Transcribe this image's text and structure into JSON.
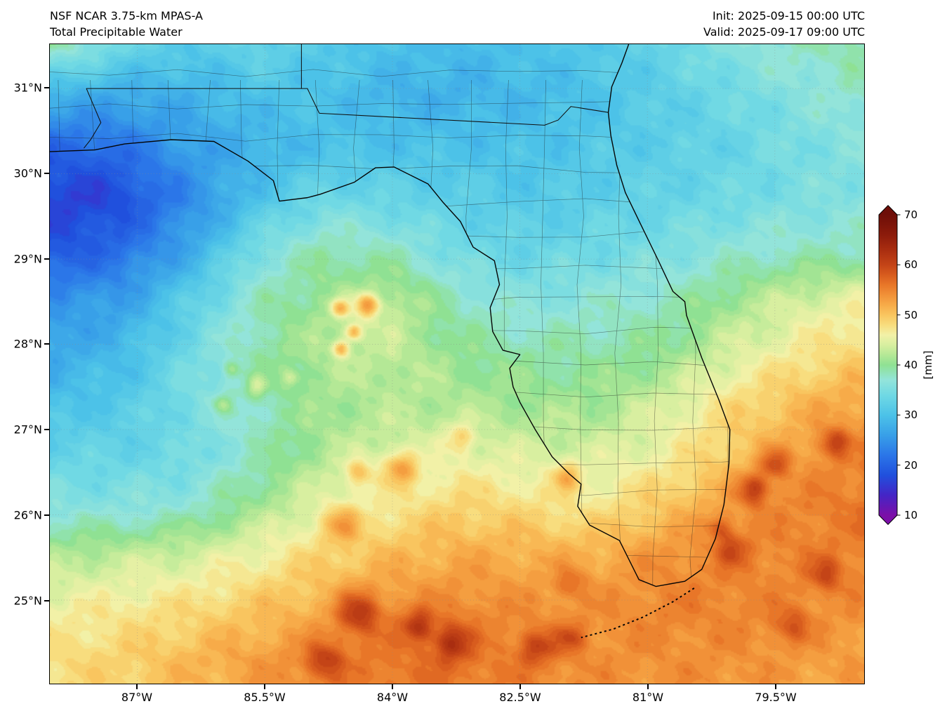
{
  "header": {
    "model": "NSF NCAR 3.75-km MPAS-A",
    "variable": "Total Precipitable Water",
    "init": "Init: 2025-09-15 00:00 UTC",
    "valid": "Valid: 2025-09-17 09:00 UTC"
  },
  "axes": {
    "y_ticks": [
      "31°N",
      "30°N",
      "29°N",
      "28°N",
      "27°N",
      "26°N",
      "25°N"
    ],
    "x_ticks": [
      "87°W",
      "85.5°W",
      "84°W",
      "82.5°W",
      "81°W",
      "79.5°W"
    ]
  },
  "colorbar": {
    "label": "[mm]",
    "ticks": [
      70,
      60,
      50,
      40,
      30,
      20,
      10
    ],
    "min": 10,
    "max": 70
  },
  "chart_data": {
    "type": "heatmap",
    "title": "Total Precipitable Water",
    "units": "mm",
    "value_range": [
      10,
      70
    ],
    "lon_range": [
      -88.03,
      -78.45
    ],
    "lat_range": [
      24.02,
      31.52
    ],
    "grid_lons": [
      -88.0,
      -87.2,
      -86.4,
      -85.6,
      -84.8,
      -84.0,
      -83.2,
      -82.4,
      -81.6,
      -80.8,
      -80.0,
      -79.2,
      -78.4
    ],
    "grid_lats": [
      31.5,
      30.9,
      30.3,
      29.7,
      29.1,
      28.5,
      27.9,
      27.3,
      26.7,
      26.1,
      25.5,
      24.9,
      24.3
    ],
    "values": [
      [
        39,
        34,
        31,
        33,
        31,
        30,
        29,
        30,
        31,
        33,
        36,
        38,
        39
      ],
      [
        28,
        27,
        28,
        30,
        30,
        28,
        28,
        29,
        30,
        32,
        34,
        36,
        38
      ],
      [
        21,
        23,
        26,
        28,
        30,
        30,
        30,
        30,
        31,
        32,
        33,
        35,
        36
      ],
      [
        18,
        20,
        24,
        30,
        34,
        33,
        32,
        31,
        32,
        33,
        34,
        35,
        36
      ],
      [
        19,
        22,
        27,
        35,
        39,
        38,
        34,
        33,
        34,
        35,
        37,
        38,
        38
      ],
      [
        25,
        26,
        32,
        38,
        41,
        43,
        38,
        36,
        37,
        38,
        41,
        44,
        46
      ],
      [
        27,
        29,
        34,
        39,
        42,
        43,
        40,
        39,
        39,
        40,
        44,
        47,
        49
      ],
      [
        30,
        31,
        35,
        38,
        41,
        42,
        42,
        41,
        41,
        44,
        48,
        51,
        53
      ],
      [
        33,
        33,
        34,
        38,
        42,
        44,
        45,
        44,
        44,
        46,
        50,
        53,
        55
      ],
      [
        36,
        36,
        37,
        41,
        45,
        47,
        49,
        48,
        47,
        50,
        53,
        55,
        56
      ],
      [
        42,
        43,
        44,
        46,
        49,
        51,
        52,
        52,
        52,
        54,
        55,
        55,
        55
      ],
      [
        46,
        47,
        48,
        50,
        52,
        54,
        55,
        54,
        54,
        55,
        55,
        54,
        54
      ],
      [
        48,
        49,
        51,
        53,
        55,
        56,
        56,
        55,
        54,
        54,
        54,
        53,
        53
      ]
    ],
    "spots": [
      {
        "lat": 29.8,
        "lon": -87.4,
        "amp": -2.5,
        "sigma": 0.5
      },
      {
        "lat": 28.45,
        "lon": -84.3,
        "amp": 11,
        "sigma": 0.1
      },
      {
        "lat": 28.42,
        "lon": -84.62,
        "amp": 9,
        "sigma": 0.08
      },
      {
        "lat": 28.15,
        "lon": -84.45,
        "amp": 10,
        "sigma": 0.07
      },
      {
        "lat": 27.95,
        "lon": -84.6,
        "amp": 9,
        "sigma": 0.07
      },
      {
        "lat": 27.7,
        "lon": -85.9,
        "amp": 4,
        "sigma": 0.07
      },
      {
        "lat": 27.6,
        "lon": -85.2,
        "amp": 4,
        "sigma": 0.07
      },
      {
        "lat": 27.5,
        "lon": -85.6,
        "amp": 5,
        "sigma": 0.09
      },
      {
        "lat": 27.3,
        "lon": -86.0,
        "amp": 4,
        "sigma": 0.08
      },
      {
        "lat": 26.55,
        "lon": -83.9,
        "amp": 8,
        "sigma": 0.14
      },
      {
        "lat": 26.5,
        "lon": -84.4,
        "amp": 6,
        "sigma": 0.12
      },
      {
        "lat": 26.9,
        "lon": -83.2,
        "amp": 5,
        "sigma": 0.12
      },
      {
        "lat": 26.45,
        "lon": -81.95,
        "amp": 6,
        "sigma": 0.12
      },
      {
        "lat": 26.3,
        "lon": -79.75,
        "amp": 8,
        "sigma": 0.13
      },
      {
        "lat": 26.6,
        "lon": -79.5,
        "amp": 7,
        "sigma": 0.12
      },
      {
        "lat": 26.85,
        "lon": -78.8,
        "amp": 7,
        "sigma": 0.12
      },
      {
        "lat": 25.9,
        "lon": -84.6,
        "amp": 6,
        "sigma": 0.15
      },
      {
        "lat": 25.85,
        "lon": -80.15,
        "amp": 5,
        "sigma": 0.1
      },
      {
        "lat": 25.2,
        "lon": -81.9,
        "amp": 4,
        "sigma": 0.12
      },
      {
        "lat": 24.85,
        "lon": -84.4,
        "amp": 8,
        "sigma": 0.18
      },
      {
        "lat": 24.7,
        "lon": -83.7,
        "amp": 7,
        "sigma": 0.13
      },
      {
        "lat": 24.55,
        "lon": -81.9,
        "amp": 5,
        "sigma": 0.12
      },
      {
        "lat": 24.5,
        "lon": -83.3,
        "amp": 7,
        "sigma": 0.15
      },
      {
        "lat": 24.45,
        "lon": -82.3,
        "amp": 6,
        "sigma": 0.14
      },
      {
        "lat": 24.3,
        "lon": -84.8,
        "amp": 6,
        "sigma": 0.15
      },
      {
        "lat": 24.7,
        "lon": -79.3,
        "amp": 5,
        "sigma": 0.15
      },
      {
        "lat": 25.3,
        "lon": -78.9,
        "amp": 5,
        "sigma": 0.14
      },
      {
        "lat": 25.6,
        "lon": -80.0,
        "amp": 5,
        "sigma": 0.13
      }
    ],
    "colormap": {
      "stops": [
        [
          10,
          "#7b0fa8"
        ],
        [
          14,
          "#4425c6"
        ],
        [
          18,
          "#2050dd"
        ],
        [
          22,
          "#2b76e8"
        ],
        [
          26,
          "#38a0e8"
        ],
        [
          30,
          "#4cc2e8"
        ],
        [
          34,
          "#70d9e4"
        ],
        [
          37,
          "#93e4da"
        ],
        [
          40,
          "#8fe193"
        ],
        [
          42,
          "#b4e896"
        ],
        [
          44,
          "#d8efa0"
        ],
        [
          46,
          "#f2f1a7"
        ],
        [
          48,
          "#f8dd7e"
        ],
        [
          50,
          "#f9c55f"
        ],
        [
          52,
          "#f7ab49"
        ],
        [
          54,
          "#f19138"
        ],
        [
          56,
          "#e87628"
        ],
        [
          58,
          "#d85c1e"
        ],
        [
          60,
          "#c44417"
        ],
        [
          63,
          "#a92d10"
        ],
        [
          66,
          "#8c1b0b"
        ],
        [
          70,
          "#6e0e08"
        ]
      ]
    },
    "gridlines": {
      "lats": [
        25,
        26,
        27,
        28,
        29,
        30,
        31
      ],
      "lons": [
        -87,
        -85.5,
        -84,
        -82.5,
        -81,
        -79.5
      ]
    },
    "counties": {
      "lon_start": -87.95,
      "lon_step": 0.44,
      "lon_count": 22,
      "lat_start": 24.35,
      "lat_step": 0.38,
      "lat_count": 20,
      "jitter": 0.1
    },
    "geo": {
      "coast": [
        [
          -88.03,
          30.26
        ],
        [
          -87.5,
          30.28
        ],
        [
          -87.15,
          30.35
        ],
        [
          -86.6,
          30.4
        ],
        [
          -86.1,
          30.38
        ],
        [
          -85.7,
          30.15
        ],
        [
          -85.4,
          29.92
        ],
        [
          -85.33,
          29.68
        ],
        [
          -85.0,
          29.72
        ],
        [
          -84.85,
          29.76
        ],
        [
          -84.45,
          29.9
        ],
        [
          -84.2,
          30.07
        ],
        [
          -83.98,
          30.08
        ],
        [
          -83.58,
          29.88
        ],
        [
          -83.4,
          29.66
        ],
        [
          -83.2,
          29.44
        ],
        [
          -83.05,
          29.14
        ],
        [
          -82.8,
          28.98
        ],
        [
          -82.74,
          28.7
        ],
        [
          -82.85,
          28.43
        ],
        [
          -82.82,
          28.15
        ],
        [
          -82.7,
          27.93
        ],
        [
          -82.5,
          27.88
        ],
        [
          -82.62,
          27.72
        ],
        [
          -82.58,
          27.5
        ],
        [
          -82.5,
          27.32
        ],
        [
          -82.32,
          27.0
        ],
        [
          -82.12,
          26.68
        ],
        [
          -81.92,
          26.48
        ],
        [
          -81.78,
          26.36
        ],
        [
          -81.82,
          26.1
        ],
        [
          -81.68,
          25.88
        ],
        [
          -81.33,
          25.7
        ],
        [
          -81.1,
          25.24
        ],
        [
          -80.9,
          25.16
        ],
        [
          -80.56,
          25.22
        ],
        [
          -80.36,
          25.36
        ],
        [
          -80.2,
          25.72
        ],
        [
          -80.1,
          26.12
        ],
        [
          -80.04,
          26.6
        ],
        [
          -80.03,
          27.0
        ],
        [
          -80.16,
          27.35
        ],
        [
          -80.36,
          27.84
        ],
        [
          -80.54,
          28.34
        ],
        [
          -80.56,
          28.5
        ],
        [
          -80.7,
          28.62
        ],
        [
          -80.88,
          29.0
        ],
        [
          -81.1,
          29.45
        ],
        [
          -81.26,
          29.78
        ],
        [
          -81.36,
          30.1
        ],
        [
          -81.43,
          30.45
        ],
        [
          -81.46,
          30.72
        ],
        [
          -81.42,
          31.02
        ],
        [
          -81.3,
          31.3
        ],
        [
          -81.22,
          31.52
        ]
      ],
      "borders": [
        [
          [
            -81.46,
            30.72
          ],
          [
            -81.9,
            30.79
          ],
          [
            -82.05,
            30.63
          ],
          [
            -82.21,
            30.57
          ],
          [
            -84.86,
            30.71
          ]
        ],
        [
          [
            -84.86,
            30.71
          ],
          [
            -85.0,
            31.0
          ],
          [
            -87.6,
            31.0
          ],
          [
            -87.43,
            30.6
          ],
          [
            -87.55,
            30.4
          ],
          [
            -87.63,
            30.3
          ]
        ],
        [
          [
            -85.07,
            31.0
          ],
          [
            -85.07,
            31.52
          ]
        ]
      ],
      "keys": [
        [
          -80.45,
          25.14
        ],
        [
          -80.7,
          24.98
        ],
        [
          -81.05,
          24.8
        ],
        [
          -81.4,
          24.66
        ],
        [
          -81.78,
          24.56
        ]
      ]
    }
  }
}
